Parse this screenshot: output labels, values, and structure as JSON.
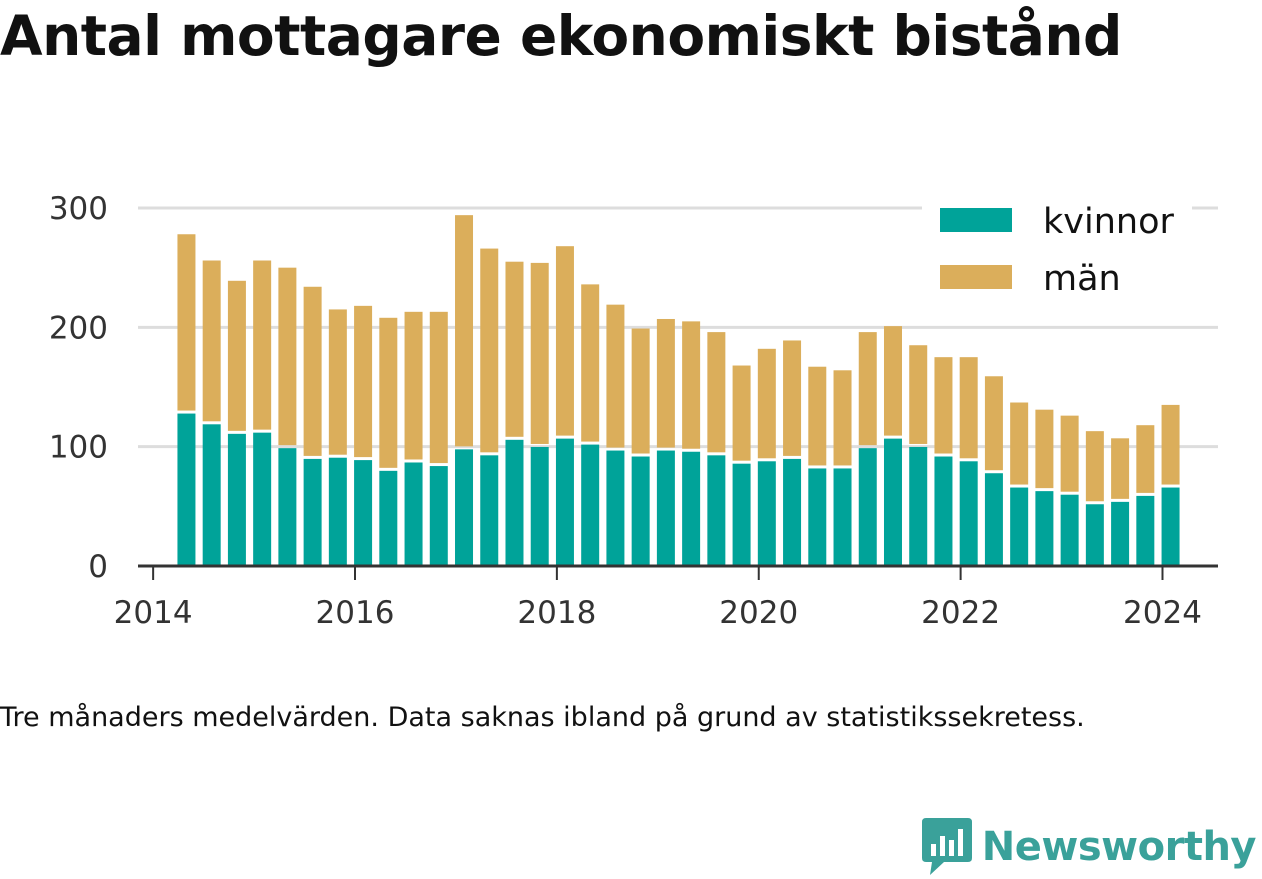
{
  "title": "Antal mottagare ekonomiskt bistånd",
  "caption": "Tre månaders medelvärden. Data saknas ibland på grund av statistikssekretess.",
  "brand": {
    "name": "Newsworthy",
    "color": "#3aa19a"
  },
  "chart_data": {
    "type": "bar",
    "stacked": true,
    "xlim": [
      2013.85,
      2024.55
    ],
    "ylim": [
      0,
      300
    ],
    "yticks": [
      0,
      100,
      200,
      300
    ],
    "xticks": [
      2014,
      2016,
      2018,
      2020,
      2022,
      2024
    ],
    "grid": true,
    "legend_position": "top-right",
    "x": [
      2014.33,
      2014.58,
      2014.83,
      2015.08,
      2015.33,
      2015.58,
      2015.83,
      2016.08,
      2016.33,
      2016.58,
      2016.83,
      2017.08,
      2017.33,
      2017.58,
      2017.83,
      2018.08,
      2018.33,
      2018.58,
      2018.83,
      2019.08,
      2019.33,
      2019.58,
      2019.83,
      2020.08,
      2020.33,
      2020.58,
      2020.83,
      2021.08,
      2021.33,
      2021.58,
      2021.83,
      2022.08,
      2022.33,
      2022.58,
      2022.83,
      2023.08,
      2023.33,
      2023.58,
      2023.83,
      2024.08
    ],
    "series": [
      {
        "name": "kvinnor",
        "color": "#00a399",
        "values": [
          129,
          120,
          112,
          113,
          100,
          91,
          92,
          90,
          81,
          88,
          85,
          99,
          94,
          107,
          101,
          108,
          103,
          98,
          93,
          98,
          97,
          94,
          87,
          89,
          91,
          83,
          83,
          100,
          108,
          101,
          93,
          89,
          79,
          67,
          64,
          61,
          53,
          55,
          60,
          67
        ]
      },
      {
        "name": "män",
        "color": "#dbae5b",
        "values": [
          149,
          136,
          127,
          143,
          150,
          143,
          123,
          128,
          127,
          125,
          128,
          195,
          172,
          148,
          153,
          160,
          133,
          121,
          106,
          109,
          108,
          102,
          81,
          93,
          98,
          84,
          81,
          96,
          93,
          84,
          82,
          86,
          80,
          70,
          67,
          65,
          60,
          52,
          58,
          68
        ]
      }
    ]
  }
}
